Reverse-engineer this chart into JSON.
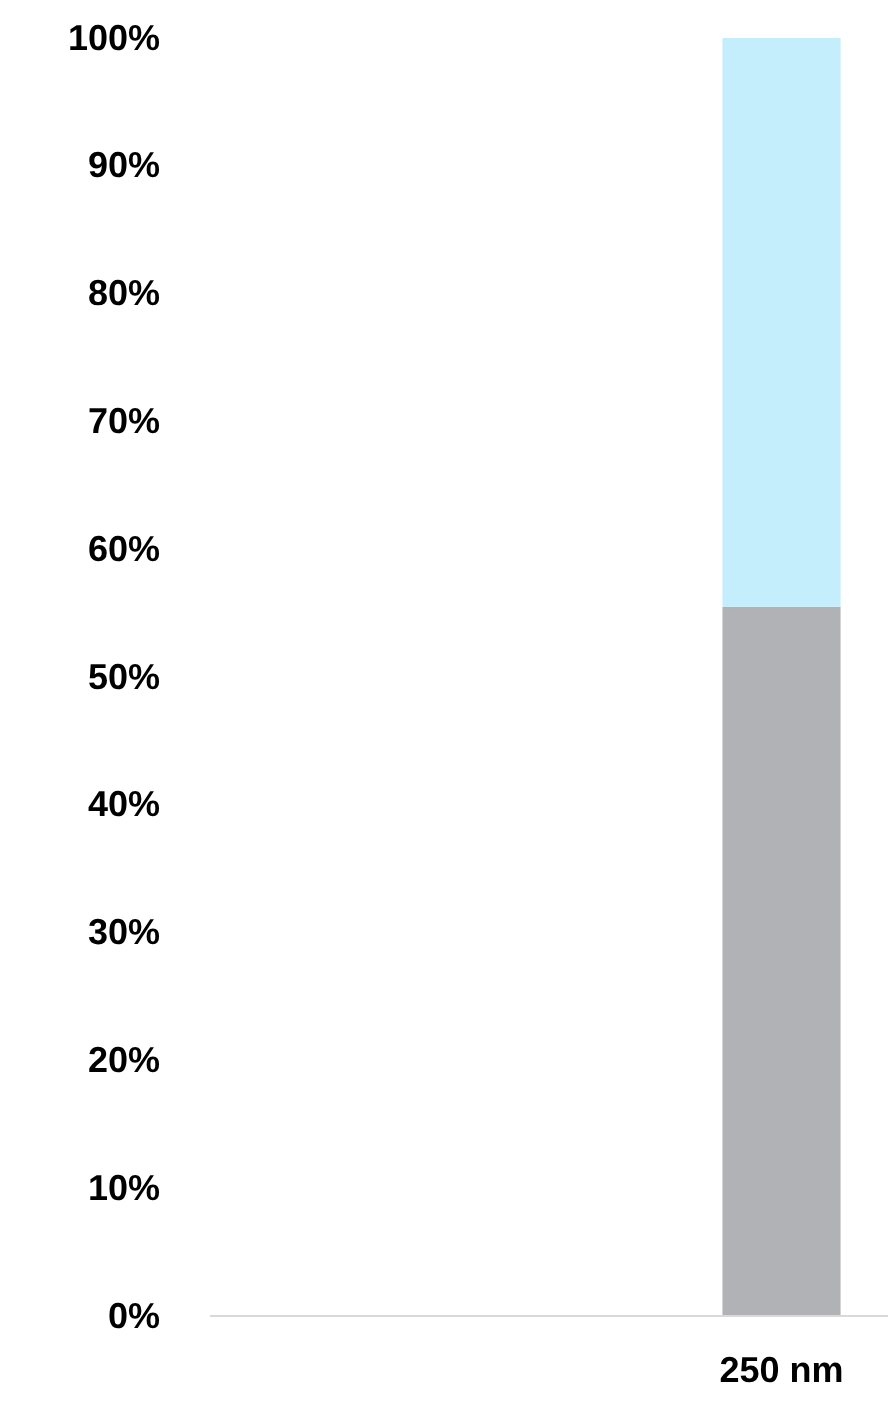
{
  "chart_data": {
    "type": "bar",
    "stacked": true,
    "categories": [
      null,
      "250 nm"
    ],
    "series": [
      {
        "color": "#b1b2b6",
        "values": [
          null,
          55.5
        ]
      },
      {
        "color": "#c5eefc",
        "values": [
          null,
          44.5
        ]
      }
    ],
    "ylim": [
      0,
      100
    ],
    "yticks": [
      {
        "value": 0,
        "label": "0%"
      },
      {
        "value": 10,
        "label": "10%"
      },
      {
        "value": 20,
        "label": "20%"
      },
      {
        "value": 30,
        "label": "30%"
      },
      {
        "value": 40,
        "label": "40%"
      },
      {
        "value": 50,
        "label": "50%"
      },
      {
        "value": 60,
        "label": "60%"
      },
      {
        "value": 70,
        "label": "70%"
      },
      {
        "value": 80,
        "label": "80%"
      },
      {
        "value": 90,
        "label": "90%"
      },
      {
        "value": 100,
        "label": "100%"
      }
    ],
    "grid": false
  }
}
